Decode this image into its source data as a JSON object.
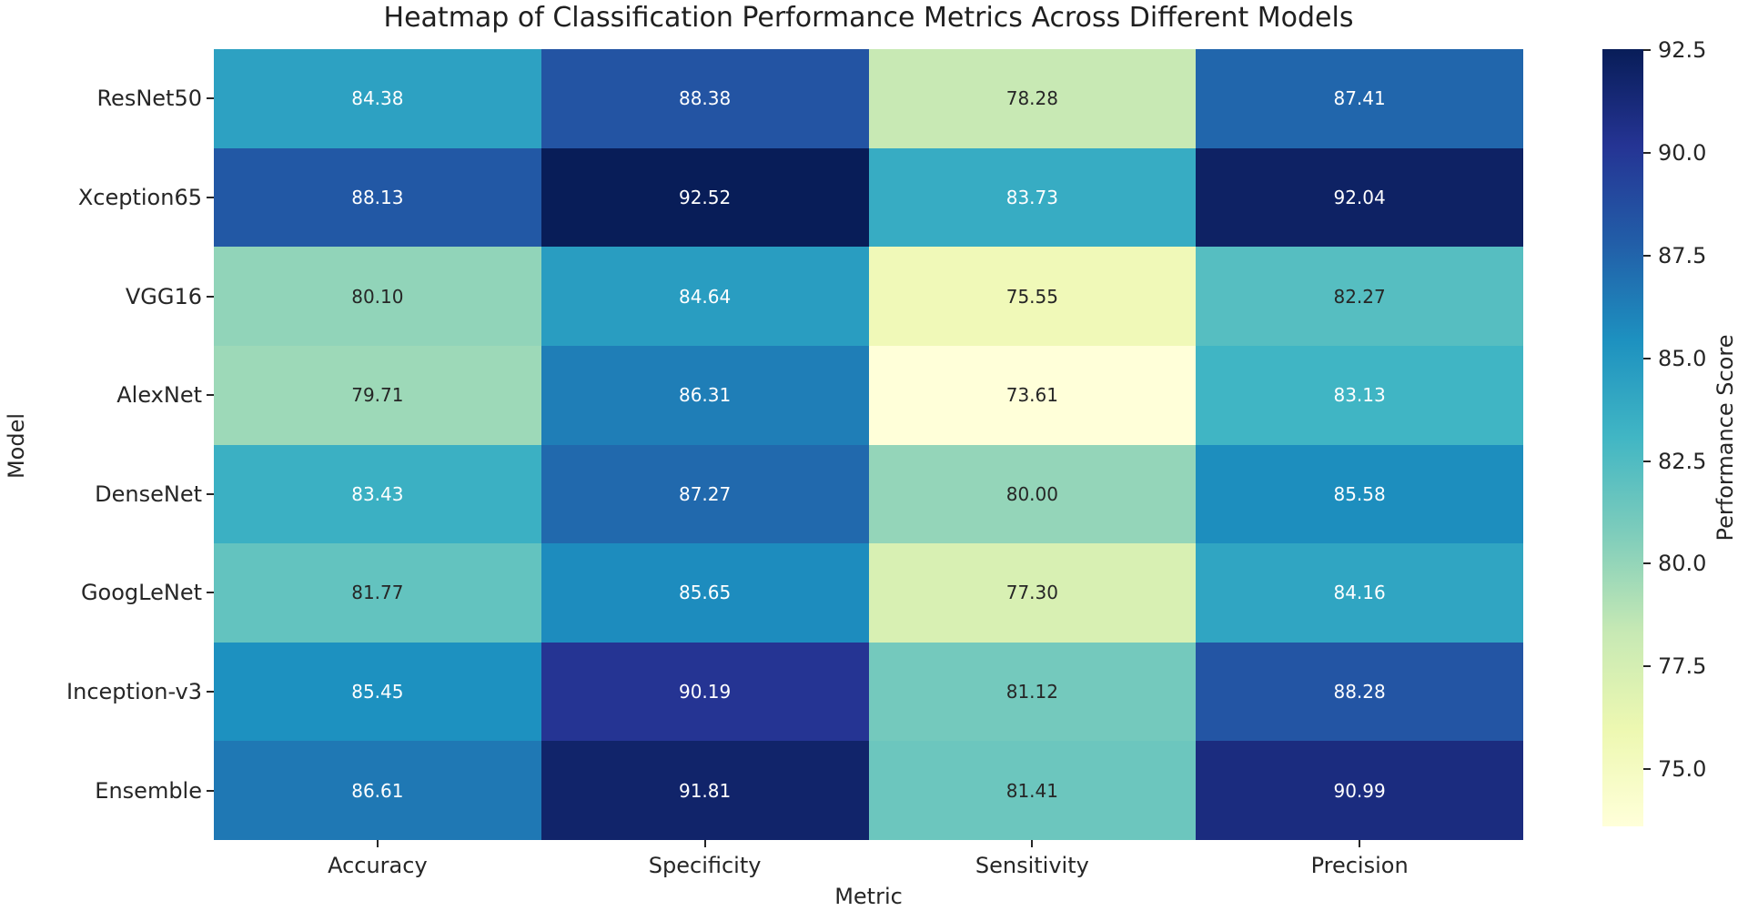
{
  "chart_data": {
    "type": "heatmap",
    "title": "Heatmap of Classification Performance Metrics Across Different Models",
    "xlabel": "Metric",
    "ylabel": "Model",
    "rows": [
      "ResNet50",
      "Xception65",
      "VGG16",
      "AlexNet",
      "DenseNet",
      "GoogLeNet",
      "Inception-v3",
      "Ensemble"
    ],
    "columns": [
      "Accuracy",
      "Specificity",
      "Sensitivity",
      "Precision"
    ],
    "values": [
      [
        84.38,
        88.38,
        78.28,
        87.41
      ],
      [
        88.13,
        92.52,
        83.73,
        92.04
      ],
      [
        80.1,
        84.64,
        75.55,
        82.27
      ],
      [
        79.71,
        86.31,
        73.61,
        83.13
      ],
      [
        83.43,
        87.27,
        80.0,
        85.58
      ],
      [
        81.77,
        85.65,
        77.3,
        84.16
      ],
      [
        85.45,
        90.19,
        81.12,
        88.28
      ],
      [
        86.61,
        91.81,
        81.41,
        90.99
      ]
    ],
    "vmin": 73.61,
    "vmax": 92.52,
    "colormap": "YlGnBu",
    "colormap_stops": [
      "#ffffd9",
      "#edf8b1",
      "#c7e9b4",
      "#7fcdbb",
      "#41b6c4",
      "#1d91c0",
      "#225ea8",
      "#253494",
      "#081d58"
    ],
    "annotation_text_colors": {
      "on_dark": "#ffffff",
      "on_light": "#262626"
    },
    "colorbar": {
      "label": "Performance Score",
      "ticks": [
        75.0,
        77.5,
        80.0,
        82.5,
        85.0,
        87.5,
        90.0,
        92.5
      ]
    },
    "legend": "colorbar-right",
    "grid": false
  }
}
